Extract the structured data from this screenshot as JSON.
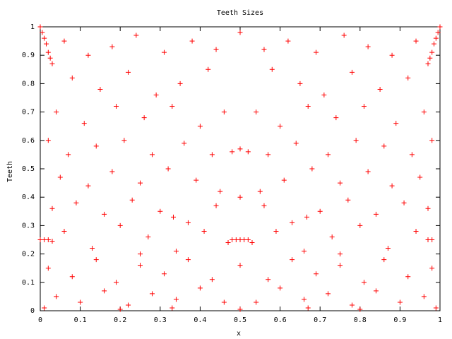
{
  "chart_data": {
    "type": "scatter",
    "title": "Teeth Sizes",
    "x_label": "x",
    "y_label": "Teeth",
    "color": "#ff0000",
    "marker": "plus",
    "grid": false,
    "xlim": [
      0,
      1
    ],
    "ylim": [
      0,
      1
    ],
    "xticks": [
      0,
      0.1,
      0.2,
      0.3,
      0.4,
      0.5,
      0.6,
      0.7,
      0.8,
      0.9,
      1
    ],
    "yticks": [
      0,
      0.1,
      0.2,
      0.3,
      0.4,
      0.5,
      0.6,
      0.7,
      0.8,
      0.9,
      1
    ],
    "x": [
      0,
      0.005,
      0.01,
      0.015,
      0.02,
      0.025,
      0.03,
      1,
      0.995,
      0.99,
      0.985,
      0.98,
      0.975,
      0.97,
      0,
      0.01,
      0.02,
      0.03,
      0.97,
      0.98,
      0.47,
      0.48,
      0.49,
      0.5,
      0.51,
      0.52,
      0.53,
      0.5,
      0.48,
      0.52,
      0.06,
      0.12,
      0.18,
      0.24,
      0.31,
      0.38,
      0.44,
      0.5,
      0.56,
      0.62,
      0.69,
      0.76,
      0.82,
      0.88,
      0.94,
      0.08,
      0.15,
      0.22,
      0.29,
      0.35,
      0.42,
      0.58,
      0.65,
      0.71,
      0.78,
      0.85,
      0.92,
      0.04,
      0.11,
      0.19,
      0.26,
      0.33,
      0.4,
      0.46,
      0.54,
      0.6,
      0.67,
      0.74,
      0.81,
      0.89,
      0.96,
      0.02,
      0.07,
      0.14,
      0.21,
      0.28,
      0.36,
      0.43,
      0.57,
      0.64,
      0.72,
      0.79,
      0.86,
      0.93,
      0.98,
      0.05,
      0.12,
      0.18,
      0.25,
      0.32,
      0.39,
      0.45,
      0.55,
      0.61,
      0.68,
      0.75,
      0.82,
      0.88,
      0.95,
      0.03,
      0.09,
      0.16,
      0.23,
      0.3,
      0.37,
      0.44,
      0.56,
      0.63,
      0.7,
      0.77,
      0.84,
      0.91,
      0.97,
      0.06,
      0.13,
      0.2,
      0.27,
      0.34,
      0.41,
      0.59,
      0.66,
      0.73,
      0.8,
      0.87,
      0.94,
      0.02,
      0.08,
      0.14,
      0.19,
      0.25,
      0.31,
      0.37,
      0.43,
      0.5,
      0.57,
      0.63,
      0.69,
      0.75,
      0.81,
      0.86,
      0.92,
      0.98,
      0.04,
      0.1,
      0.16,
      0.22,
      0.28,
      0.34,
      0.4,
      0.46,
      0.54,
      0.6,
      0.66,
      0.72,
      0.78,
      0.84,
      0.9,
      0.96,
      0.01,
      0.2,
      0.33,
      0.5,
      0.67,
      0.8,
      0.99,
      0.25,
      0.75,
      0.333,
      0.667,
      0.5
    ],
    "values": [
      1,
      0.98,
      0.96,
      0.94,
      0.91,
      0.89,
      0.87,
      1,
      0.98,
      0.96,
      0.94,
      0.91,
      0.89,
      0.87,
      0.25,
      0.25,
      0.25,
      0.245,
      0.25,
      0.25,
      0.24,
      0.25,
      0.25,
      0.25,
      0.25,
      0.25,
      0.24,
      0.57,
      0.56,
      0.56,
      0.95,
      0.9,
      0.93,
      0.97,
      0.91,
      0.95,
      0.92,
      0.98,
      0.92,
      0.95,
      0.91,
      0.97,
      0.93,
      0.9,
      0.95,
      0.82,
      0.78,
      0.84,
      0.76,
      0.8,
      0.85,
      0.85,
      0.8,
      0.76,
      0.84,
      0.78,
      0.82,
      0.7,
      0.66,
      0.72,
      0.68,
      0.72,
      0.65,
      0.7,
      0.7,
      0.65,
      0.72,
      0.68,
      0.72,
      0.66,
      0.7,
      0.6,
      0.55,
      0.58,
      0.6,
      0.55,
      0.59,
      0.55,
      0.55,
      0.59,
      0.55,
      0.6,
      0.58,
      0.55,
      0.6,
      0.47,
      0.44,
      0.49,
      0.45,
      0.5,
      0.46,
      0.42,
      0.42,
      0.46,
      0.5,
      0.45,
      0.49,
      0.44,
      0.47,
      0.36,
      0.38,
      0.34,
      0.39,
      0.35,
      0.31,
      0.37,
      0.37,
      0.31,
      0.35,
      0.39,
      0.34,
      0.38,
      0.36,
      0.28,
      0.22,
      0.3,
      0.26,
      0.21,
      0.28,
      0.28,
      0.21,
      0.26,
      0.3,
      0.22,
      0.28,
      0.15,
      0.12,
      0.18,
      0.1,
      0.16,
      0.13,
      0.18,
      0.11,
      0.16,
      0.11,
      0.18,
      0.13,
      0.16,
      0.1,
      0.18,
      0.12,
      0.15,
      0.05,
      0.03,
      0.07,
      0.02,
      0.06,
      0.04,
      0.08,
      0.03,
      0.03,
      0.08,
      0.04,
      0.06,
      0.02,
      0.07,
      0.03,
      0.05,
      0.01,
      0.005,
      0.01,
      0.005,
      0.01,
      0.005,
      0.01,
      0.2,
      0.2,
      0.33,
      0.33,
      0.4
    ]
  }
}
